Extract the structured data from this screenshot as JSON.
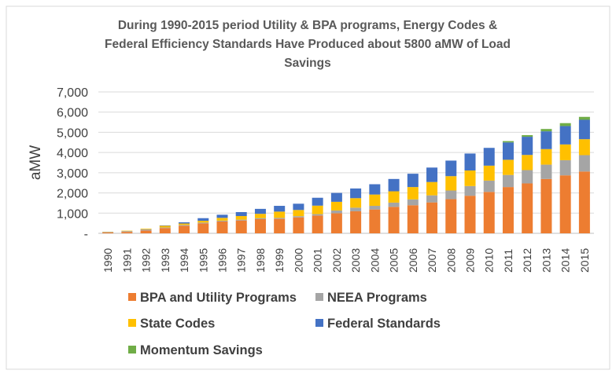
{
  "chart_data": {
    "type": "bar",
    "stacked": true,
    "title_lines": [
      "During 1990-2015 period Utility & BPA programs, Energy Codes &",
      "Federal Efficiency Standards Have Produced about 5800 aMW of Load",
      "Savings"
    ],
    "xlabel": "",
    "ylabel": "aMW",
    "ylim": [
      0,
      7000
    ],
    "yticks": [
      0,
      1000,
      2000,
      3000,
      4000,
      5000,
      6000,
      7000
    ],
    "ytick_labels": [
      "-",
      "1,000",
      "2,000",
      "3,000",
      "4,000",
      "5,000",
      "6,000",
      "7,000"
    ],
    "grid": true,
    "legend_position": "bottom",
    "categories": [
      "1990",
      "1991",
      "1992",
      "1993",
      "1994",
      "1995",
      "1996",
      "1997",
      "1998",
      "1999",
      "2000",
      "2001",
      "2002",
      "2003",
      "2004",
      "2005",
      "2006",
      "2007",
      "2008",
      "2009",
      "2010",
      "2011",
      "2012",
      "2013",
      "2014",
      "2015"
    ],
    "series": [
      {
        "name": "BPA and Utility Programs",
        "color": "#ED7D31",
        "values": [
          40,
          70,
          140,
          260,
          375,
          490,
          585,
          635,
          700,
          715,
          790,
          880,
          990,
          1090,
          1180,
          1310,
          1390,
          1530,
          1690,
          1860,
          2050,
          2290,
          2470,
          2690,
          2870,
          3060
        ]
      },
      {
        "name": "NEEA Programs",
        "color": "#A5A5A5",
        "values": [
          30,
          40,
          60,
          30,
          40,
          40,
          40,
          40,
          50,
          50,
          60,
          70,
          140,
          180,
          180,
          210,
          290,
          350,
          430,
          480,
          560,
          600,
          660,
          710,
          750,
          810
        ]
      },
      {
        "name": "State Codes",
        "color": "#FFC000",
        "values": [
          10,
          20,
          30,
          80,
          70,
          90,
          140,
          180,
          215,
          310,
          305,
          420,
          430,
          470,
          560,
          560,
          610,
          660,
          710,
          770,
          740,
          750,
          750,
          770,
          780,
          790
        ]
      },
      {
        "name": "Federal Standards",
        "color": "#4472C4",
        "values": [
          0,
          0,
          0,
          20,
          60,
          130,
          155,
          195,
          245,
          285,
          310,
          390,
          440,
          480,
          510,
          610,
          660,
          715,
          770,
          840,
          880,
          860,
          900,
          880,
          910,
          960
        ]
      },
      {
        "name": "Momentum Savings",
        "color": "#70AD47",
        "values": [
          0,
          0,
          0,
          0,
          0,
          0,
          0,
          0,
          0,
          0,
          0,
          0,
          0,
          0,
          0,
          0,
          0,
          0,
          0,
          0,
          0,
          65,
          80,
          115,
          145,
          145
        ]
      }
    ]
  }
}
